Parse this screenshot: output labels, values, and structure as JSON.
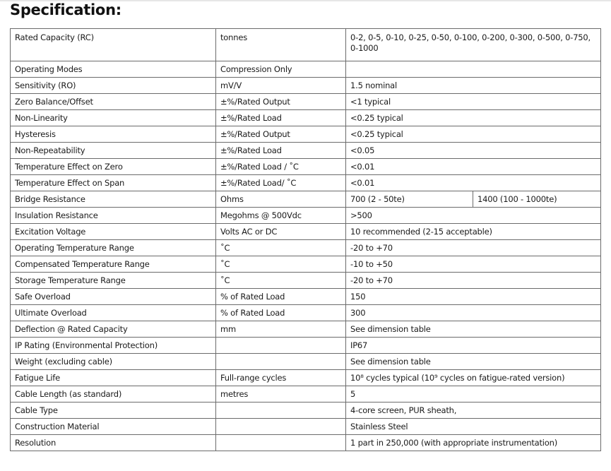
{
  "title": "Specification:",
  "rows": [
    {
      "parameter": "Rated Capacity (RC)",
      "unit": "tonnes",
      "value": "0-2, 0-5, 0-10, 0-25, 0-50, 0-100, 0-200, 0-300, 0-500, 0-750, 0-1000"
    },
    {
      "parameter": "Operating Modes",
      "unit": "Compression Only",
      "value": ""
    },
    {
      "parameter": "Sensitivity (RO)",
      "unit": "mV/V",
      "value": "1.5 nominal"
    },
    {
      "parameter": "Zero Balance/Offset",
      "unit": "±%/Rated Output",
      "value": "<1 typical"
    },
    {
      "parameter": "Non-Linearity",
      "unit": "±%/Rated Load",
      "value": "<0.25 typical"
    },
    {
      "parameter": "Hysteresis",
      "unit": "±%/Rated Output",
      "value": "<0.25 typical"
    },
    {
      "parameter": "Non-Repeatability",
      "unit": "±%/Rated Load",
      "value": "<0.05"
    },
    {
      "parameter": "Temperature Effect on Zero",
      "unit": "±%/Rated Load / ˚C",
      "value": "<0.01"
    },
    {
      "parameter": "Temperature Effect on Span",
      "unit": "±%/Rated Load/ ˚C",
      "value": "<0.01"
    },
    {
      "parameter": "Bridge Resistance",
      "unit": "Ohms",
      "value": "700 (2 - 50te)",
      "value2": "1400 (100 - 1000te)"
    },
    {
      "parameter": "Insulation Resistance",
      "unit": "Megohms @ 500Vdc",
      "value": ">500"
    },
    {
      "parameter": "Excitation Voltage",
      "unit": "Volts AC or DC",
      "value": "10 recommended (2-15 acceptable)"
    },
    {
      "parameter": "Operating Temperature Range",
      "unit": "˚C",
      "value": "-20 to +70"
    },
    {
      "parameter": "Compensated Temperature Range",
      "unit": "˚C",
      "value": "-10 to +50"
    },
    {
      "parameter": "Storage Temperature Range",
      "unit": "˚C",
      "value": "-20 to +70"
    },
    {
      "parameter": "Safe Overload",
      "unit": "% of Rated Load",
      "value": "150"
    },
    {
      "parameter": "Ultimate Overload",
      "unit": "% of Rated Load",
      "value": "300"
    },
    {
      "parameter": "Deflection @ Rated Capacity",
      "unit": "mm",
      "value": "See dimension table"
    },
    {
      "parameter": "IP Rating (Environmental Protection)",
      "unit": "",
      "value": "IP67"
    },
    {
      "parameter": "Weight (excluding cable)",
      "unit": "",
      "value": "See dimension table"
    },
    {
      "parameter": "Fatigue Life",
      "unit": "Full-range cycles",
      "value": "10⁸ cycles typical (10⁹ cycles on fatigue-rated version)"
    },
    {
      "parameter": "Cable Length (as standard)",
      "unit": "metres",
      "value": "5"
    },
    {
      "parameter": "Cable Type",
      "unit": "",
      "value": "4-core screen, PUR sheath,"
    },
    {
      "parameter": "Construction Material",
      "unit": "",
      "value": "Stainless Steel"
    },
    {
      "parameter": "Resolution",
      "unit": "",
      "value": "1 part in 250,000 (with appropriate instrumentation)"
    }
  ]
}
